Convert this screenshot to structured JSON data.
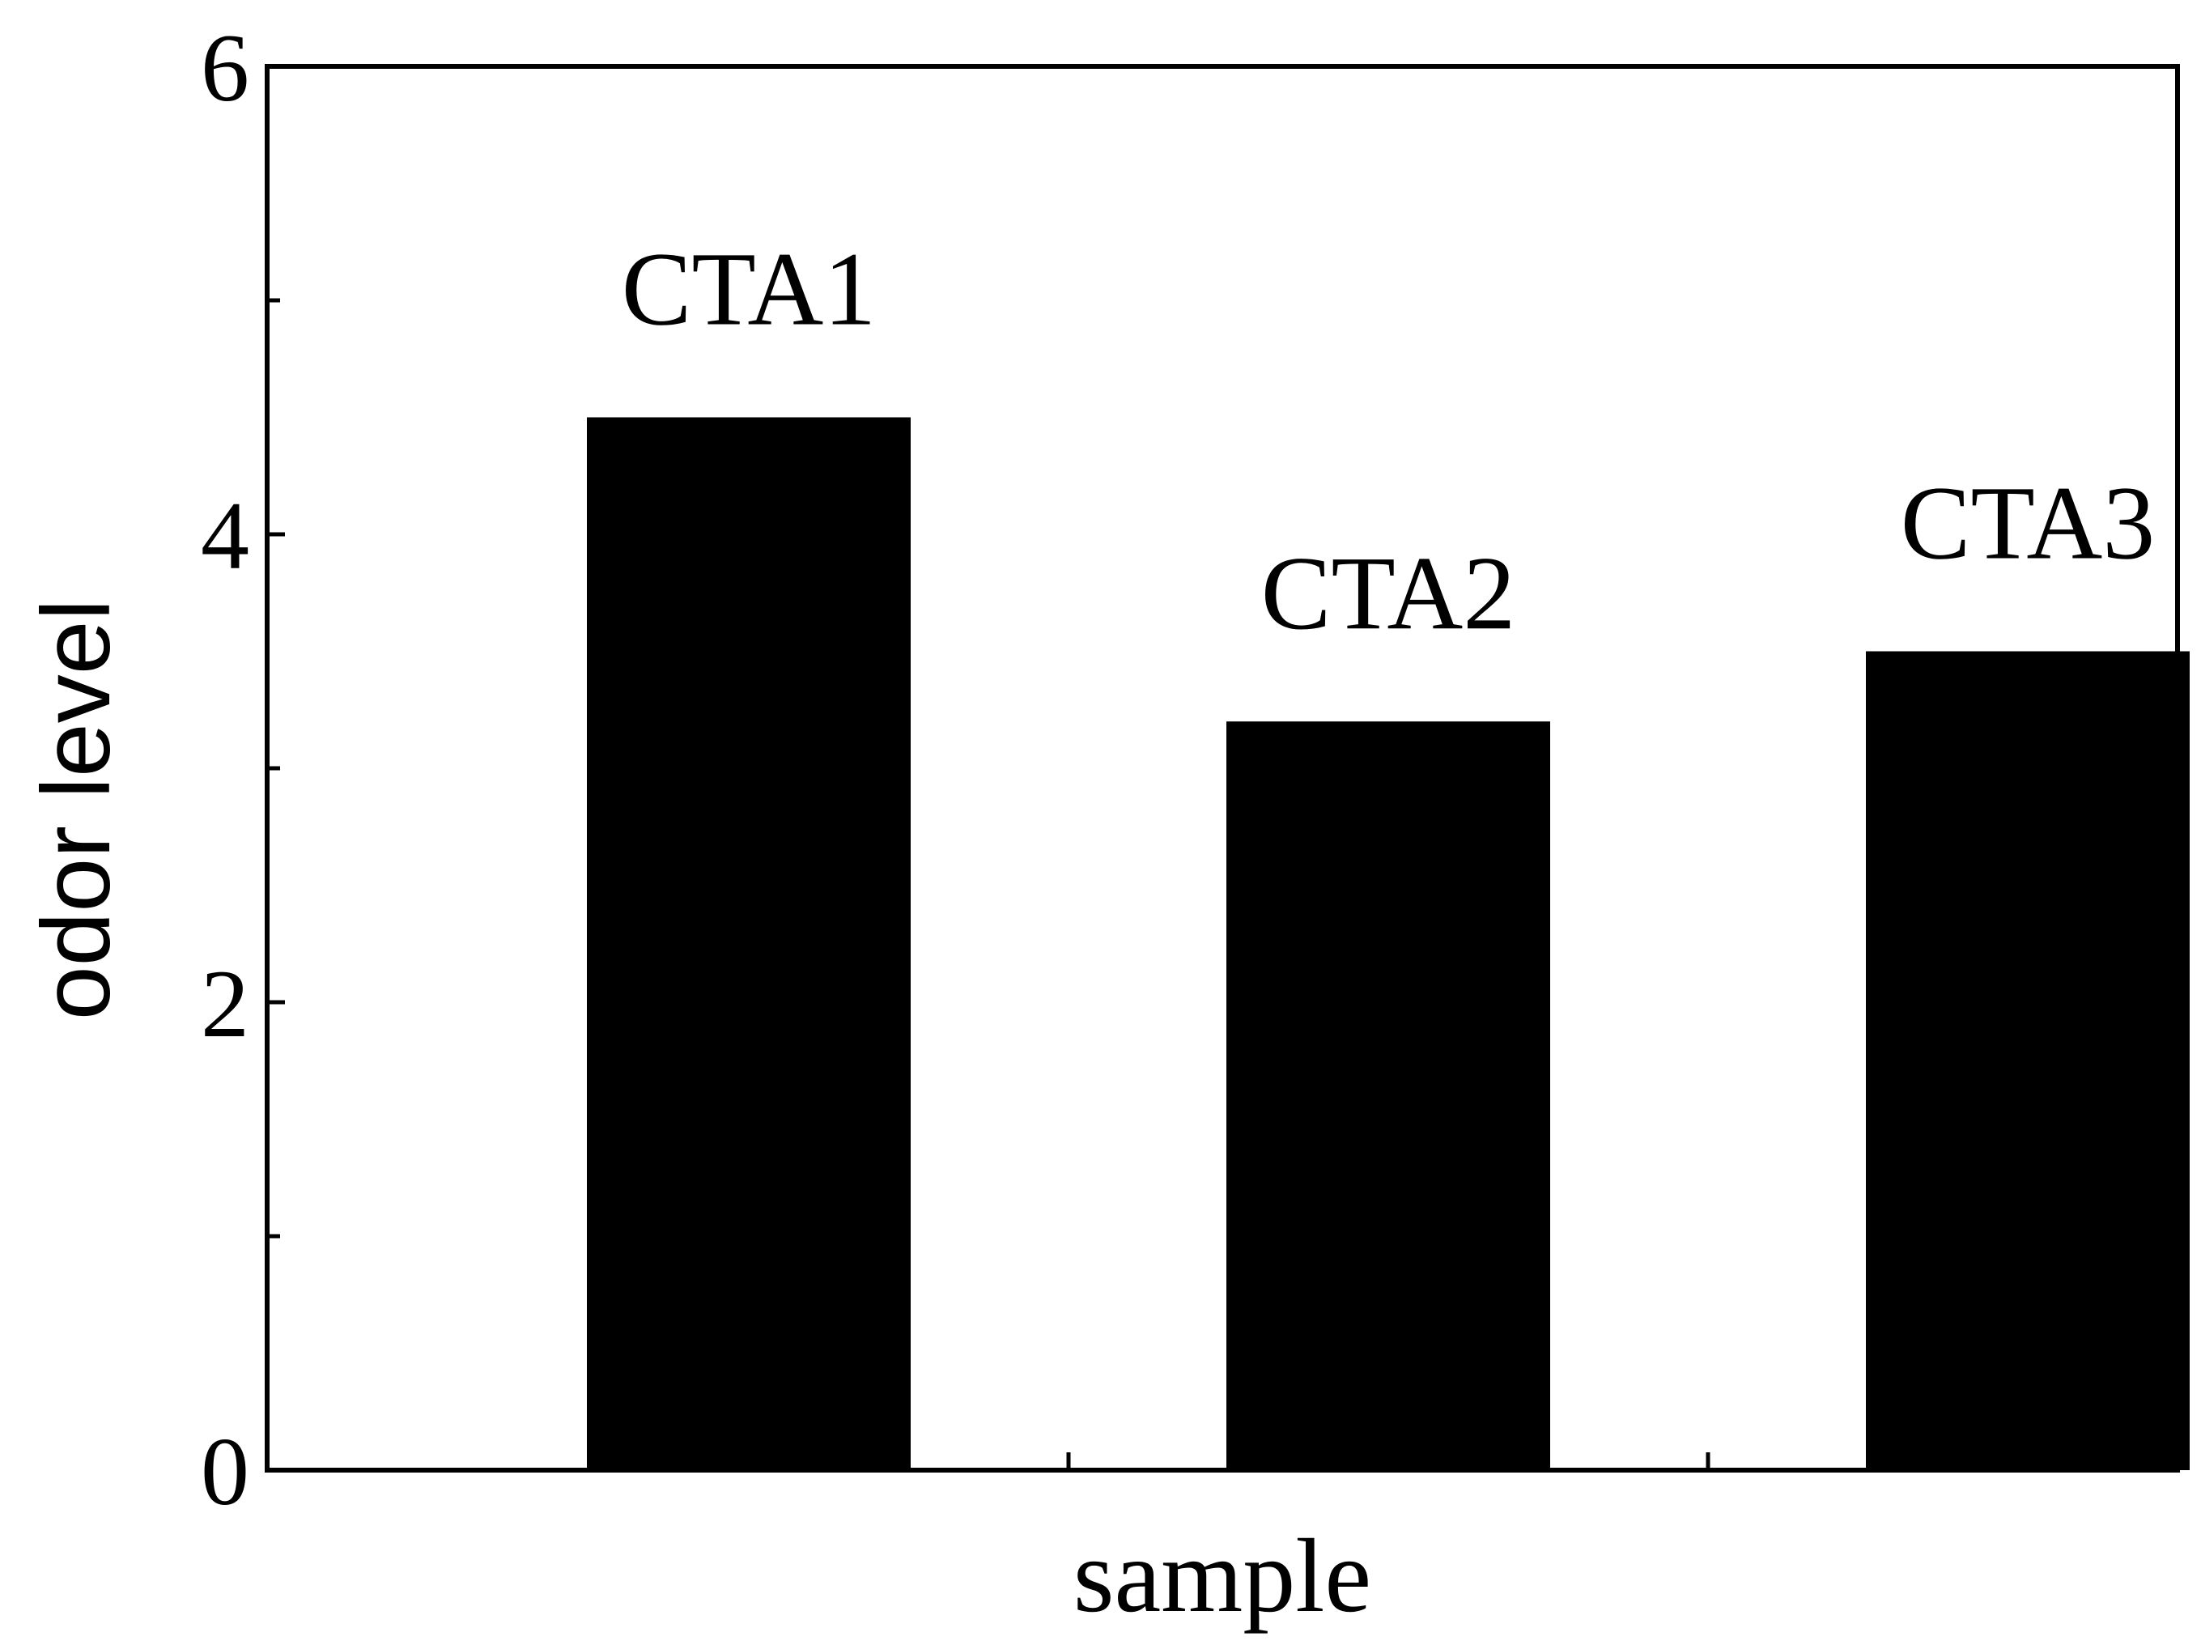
{
  "chart_data": {
    "type": "bar",
    "title": "",
    "xlabel": "sample",
    "ylabel": "odor level",
    "categories": [
      "CTA1",
      "CTA2",
      "CTA3"
    ],
    "values": [
      4.5,
      3.2,
      3.5
    ],
    "ylim": [
      0,
      6
    ],
    "yticks_major": [
      0,
      2,
      4,
      6
    ],
    "yticks_minor": [
      1,
      3,
      5
    ],
    "grid": false,
    "legend": "none",
    "bar_color": "#000000"
  }
}
